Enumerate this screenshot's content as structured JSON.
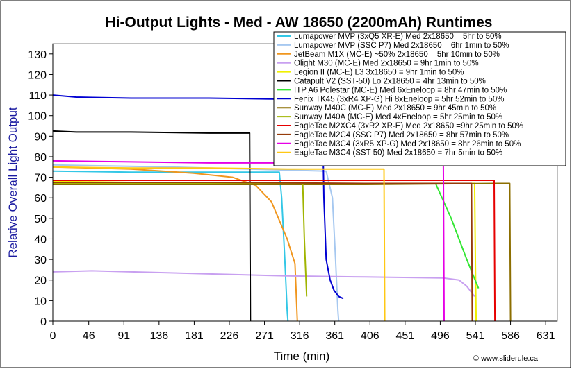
{
  "chart_data": {
    "type": "line",
    "title": "Hi-Output Lights - Med - AW 18650 (2200mAh) Runtimes",
    "xlabel": "Time (min)",
    "ylabel": "Relative Overall Light Output",
    "credit": "© www.sliderule.ca",
    "xlim": [
      0,
      646
    ],
    "ylim": [
      0,
      135
    ],
    "xticks": [
      0,
      46,
      91,
      136,
      181,
      226,
      271,
      316,
      361,
      406,
      451,
      496,
      541,
      586,
      631
    ],
    "yticks": [
      0,
      10,
      20,
      30,
      40,
      50,
      60,
      70,
      80,
      90,
      100,
      110,
      120,
      130
    ],
    "grid": false,
    "legend_position": "top-right",
    "colors": {
      "plot_bg": "#ffffff",
      "ylabel": "#1a1aa0",
      "axis": "#000000"
    },
    "series": [
      {
        "name": "Lumapower MVP (3xQ5 XR-E) Med 2x18650 = 5hr to 50%",
        "color": "#33c7e6",
        "points": [
          [
            0,
            73
          ],
          [
            100,
            72.5
          ],
          [
            200,
            72.5
          ],
          [
            290,
            72.5
          ],
          [
            293,
            60
          ],
          [
            297,
            30
          ],
          [
            300,
            5
          ],
          [
            301,
            0
          ]
        ]
      },
      {
        "name": "Lumapower MVP (SSC P7) Med 2x18650 = 6hr 1min to 50%",
        "color": "#a6c8f0",
        "points": [
          [
            0,
            76
          ],
          [
            150,
            75
          ],
          [
            250,
            74
          ],
          [
            350,
            73
          ],
          [
            358,
            60
          ],
          [
            362,
            30
          ],
          [
            365,
            5
          ],
          [
            366,
            0
          ]
        ]
      },
      {
        "name": "JetBeam M1X (MC-E) ~50% 2x18650 = 5hr 10min to 50%",
        "color": "#f0961e",
        "points": [
          [
            0,
            75
          ],
          [
            100,
            74
          ],
          [
            180,
            72
          ],
          [
            230,
            70
          ],
          [
            260,
            66
          ],
          [
            280,
            58
          ],
          [
            300,
            40
          ],
          [
            310,
            28
          ],
          [
            312,
            10
          ],
          [
            313,
            0
          ]
        ]
      },
      {
        "name": "Olight M30 (MC-E) Med 2x18650 = 9hr 1min to 50%",
        "color": "#c8a0f0",
        "points": [
          [
            0,
            24
          ],
          [
            50,
            24.5
          ],
          [
            100,
            24
          ],
          [
            200,
            23
          ],
          [
            300,
            22
          ],
          [
            400,
            21.5
          ],
          [
            500,
            21
          ],
          [
            520,
            20
          ],
          [
            530,
            17
          ],
          [
            540,
            12
          ]
        ]
      },
      {
        "name": "Legion II (MC-E) L3 3x18650 = 9hr 1min to 50%",
        "color": "#f0f000",
        "points": [
          [
            0,
            68
          ],
          [
            200,
            67
          ],
          [
            400,
            67
          ],
          [
            540,
            67
          ],
          [
            541,
            30
          ],
          [
            542,
            0
          ]
        ]
      },
      {
        "name": "Catapult V2 (SST-50) Lo 2x18650 = 4hr 13min to 50%",
        "color": "#000000",
        "points": [
          [
            0,
            92.5
          ],
          [
            30,
            92
          ],
          [
            100,
            92
          ],
          [
            200,
            91.5
          ],
          [
            252,
            91.5
          ],
          [
            253,
            0
          ]
        ]
      },
      {
        "name": "ITP A6 Polestar (MC-E) Med 6xEneloop = 8hr 47min to 50%",
        "color": "#33e633",
        "points": [
          [
            0,
            67
          ],
          [
            200,
            67
          ],
          [
            400,
            67
          ],
          [
            490,
            67
          ],
          [
            510,
            50
          ],
          [
            530,
            30
          ],
          [
            545,
            16
          ]
        ]
      },
      {
        "name": "Fenix TK45 (3xR4 XP-G) Hi 8xEneloop = 5hr 52min to 50%",
        "color": "#0000d2",
        "points": [
          [
            0,
            110
          ],
          [
            30,
            109
          ],
          [
            100,
            108.5
          ],
          [
            200,
            108.5
          ],
          [
            300,
            108
          ],
          [
            345,
            108
          ],
          [
            347,
            60
          ],
          [
            350,
            30
          ],
          [
            355,
            20
          ],
          [
            360,
            15
          ],
          [
            366,
            12
          ],
          [
            372,
            11
          ]
        ]
      },
      {
        "name": "Sunway M40C (MC-E) Med 2x18650 = 9hr 45min to 50%",
        "color": "#8c6e00",
        "points": [
          [
            0,
            66.5
          ],
          [
            200,
            66.5
          ],
          [
            400,
            66.5
          ],
          [
            570,
            67
          ],
          [
            585,
            67
          ],
          [
            586,
            0
          ]
        ]
      },
      {
        "name": "Sunway M40A (MC-E) Med 4xEneloop = 5hr 25min to 50%",
        "color": "#a0b400",
        "points": [
          [
            0,
            67
          ],
          [
            200,
            67
          ],
          [
            320,
            67
          ],
          [
            322,
            40
          ],
          [
            325,
            12
          ]
        ]
      },
      {
        "name": "EagleTac M2XC4 (3xR2 XR-E) Med 2x18650 =9hr 25min to 50%",
        "color": "#e60000",
        "points": [
          [
            0,
            68.5
          ],
          [
            200,
            68.5
          ],
          [
            400,
            68.5
          ],
          [
            500,
            68.5
          ],
          [
            565,
            68.5
          ],
          [
            566,
            0
          ]
        ]
      },
      {
        "name": "EagleTac M2C4 (SSC P7) Med 2x18650 = 8hr 57min to 50%",
        "color": "#963c0a",
        "points": [
          [
            0,
            67.5
          ],
          [
            200,
            67.5
          ],
          [
            400,
            67
          ],
          [
            536,
            67
          ],
          [
            537,
            0
          ]
        ]
      },
      {
        "name": "EagleTac M3C4 (3xR5 XP-G) Med 2x18650 = 8hr 26min to 50%",
        "color": "#e600e6",
        "points": [
          [
            0,
            78
          ],
          [
            100,
            77.5
          ],
          [
            200,
            77
          ],
          [
            300,
            77
          ],
          [
            400,
            77
          ],
          [
            500,
            77
          ],
          [
            501,
            0
          ]
        ]
      },
      {
        "name": "EagleTac M3C4 (SST-50) Med 2x18650 = 7hr 5min to 50%",
        "color": "#ffc814",
        "points": [
          [
            0,
            75
          ],
          [
            100,
            74.5
          ],
          [
            200,
            74.5
          ],
          [
            300,
            74
          ],
          [
            424,
            74
          ],
          [
            425,
            0
          ]
        ]
      }
    ]
  }
}
